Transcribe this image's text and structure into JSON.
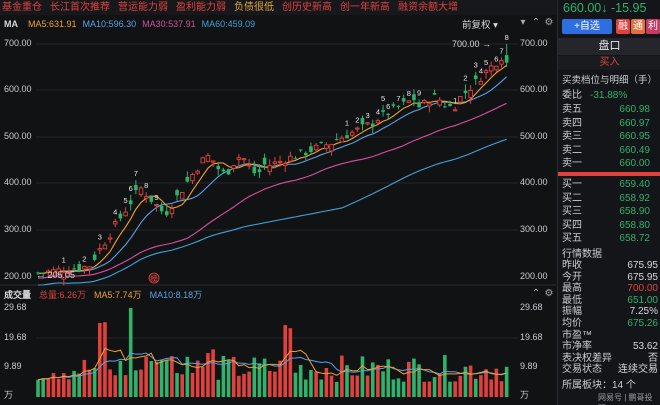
{
  "tags": [
    {
      "label": "基金重仓",
      "hl": false
    },
    {
      "label": "长江首次推荐",
      "hl": false
    },
    {
      "label": "营运能力弱",
      "hl": false
    },
    {
      "label": "盈利能力弱",
      "hl": false
    },
    {
      "label": "负债很低",
      "hl": true
    },
    {
      "label": "创历史新高",
      "hl": false
    },
    {
      "label": "创一年新高",
      "hl": false
    },
    {
      "label": "融资余额大增",
      "hl": false
    }
  ],
  "ma_row": {
    "label": "MA",
    "ma5": "MA5:631.91",
    "ma10": "MA10:596.30",
    "ma30": "MA30:537.91",
    "ma60": "MA60:459.09",
    "adjust": "前复权"
  },
  "price_axis": [
    "700.00",
    "600.00",
    "500.00",
    "400.00",
    "300.00",
    "200.00"
  ],
  "high_label": "700.00",
  "low_label": "205.05",
  "nine_turn_marks": [
    {
      "t": "1"
    },
    {
      "t": "2"
    },
    {
      "t": "3"
    },
    {
      "t": "4"
    },
    {
      "t": "5"
    },
    {
      "t": "6"
    },
    {
      "t": "7"
    },
    {
      "t": "8"
    },
    {
      "t": "9"
    },
    {
      "t": "1"
    },
    {
      "t": "2"
    },
    {
      "t": "3"
    },
    {
      "t": "4"
    },
    {
      "t": "5"
    },
    {
      "t": "6"
    },
    {
      "t": "7"
    },
    {
      "t": "8"
    },
    {
      "t": "9"
    },
    {
      "t": "1"
    },
    {
      "t": "2"
    },
    {
      "t": "3"
    },
    {
      "t": "4"
    },
    {
      "t": "5"
    },
    {
      "t": "6"
    },
    {
      "t": "7"
    },
    {
      "t": "8"
    }
  ],
  "margin_badge": "榜",
  "volume": {
    "label": "成交量",
    "total": "总量:6.26万",
    "ma5": "MA5:7.74万",
    "ma10": "MA10:8.18万",
    "axis": [
      "29.68",
      "19.68",
      "9.89"
    ],
    "unit": "万"
  },
  "quote": {
    "price": "660.00",
    "arrow": "↓",
    "change": "-15.95",
    "add_label": "+自选",
    "sq1": "融",
    "sq2": "通",
    "sq3": "利"
  },
  "panel": {
    "title": "盘口",
    "buy_in": "买入",
    "detail": "买卖档位与明细（手）",
    "weibi_label": "委比",
    "weibi_value": "-31.88%",
    "asks": [
      {
        "k": "卖五",
        "v": "660.98"
      },
      {
        "k": "卖四",
        "v": "660.97"
      },
      {
        "k": "卖三",
        "v": "660.95"
      },
      {
        "k": "卖二",
        "v": "660.49"
      },
      {
        "k": "卖一",
        "v": "660.00"
      }
    ],
    "bids": [
      {
        "k": "买一",
        "v": "659.40"
      },
      {
        "k": "买二",
        "v": "658.92"
      },
      {
        "k": "买三",
        "v": "658.90"
      },
      {
        "k": "买四",
        "v": "658.80"
      },
      {
        "k": "买五",
        "v": "658.72"
      }
    ],
    "section": "行情数据",
    "stats": [
      {
        "k": "昨收",
        "v": "675.95",
        "c": "white"
      },
      {
        "k": "今开",
        "v": "675.95",
        "c": "white"
      },
      {
        "k": "最高",
        "v": "700.00",
        "c": "red"
      },
      {
        "k": "最低",
        "v": "651.00",
        "c": "green"
      },
      {
        "k": "振幅",
        "v": "7.25%",
        "c": "white"
      },
      {
        "k": "均价",
        "v": "675.26",
        "c": "green"
      },
      {
        "k": "市盈™",
        "v": "",
        "c": "white"
      },
      {
        "k": "市净率",
        "v": "53.62",
        "c": "white"
      },
      {
        "k": "表决权差异",
        "v": "否",
        "c": "white"
      },
      {
        "k": "交易状态",
        "v": "连续交易",
        "c": "white"
      }
    ],
    "sector": "所属板块：14 个",
    "watermark": "网易号 | 鹏哥投研"
  },
  "colors": {
    "up": "#e0413c",
    "down": "#2fb26a",
    "ma5": "#f0a030",
    "ma10": "#5aa2e6",
    "ma30": "#d94fa0",
    "ma60": "#3fa2d8"
  }
}
